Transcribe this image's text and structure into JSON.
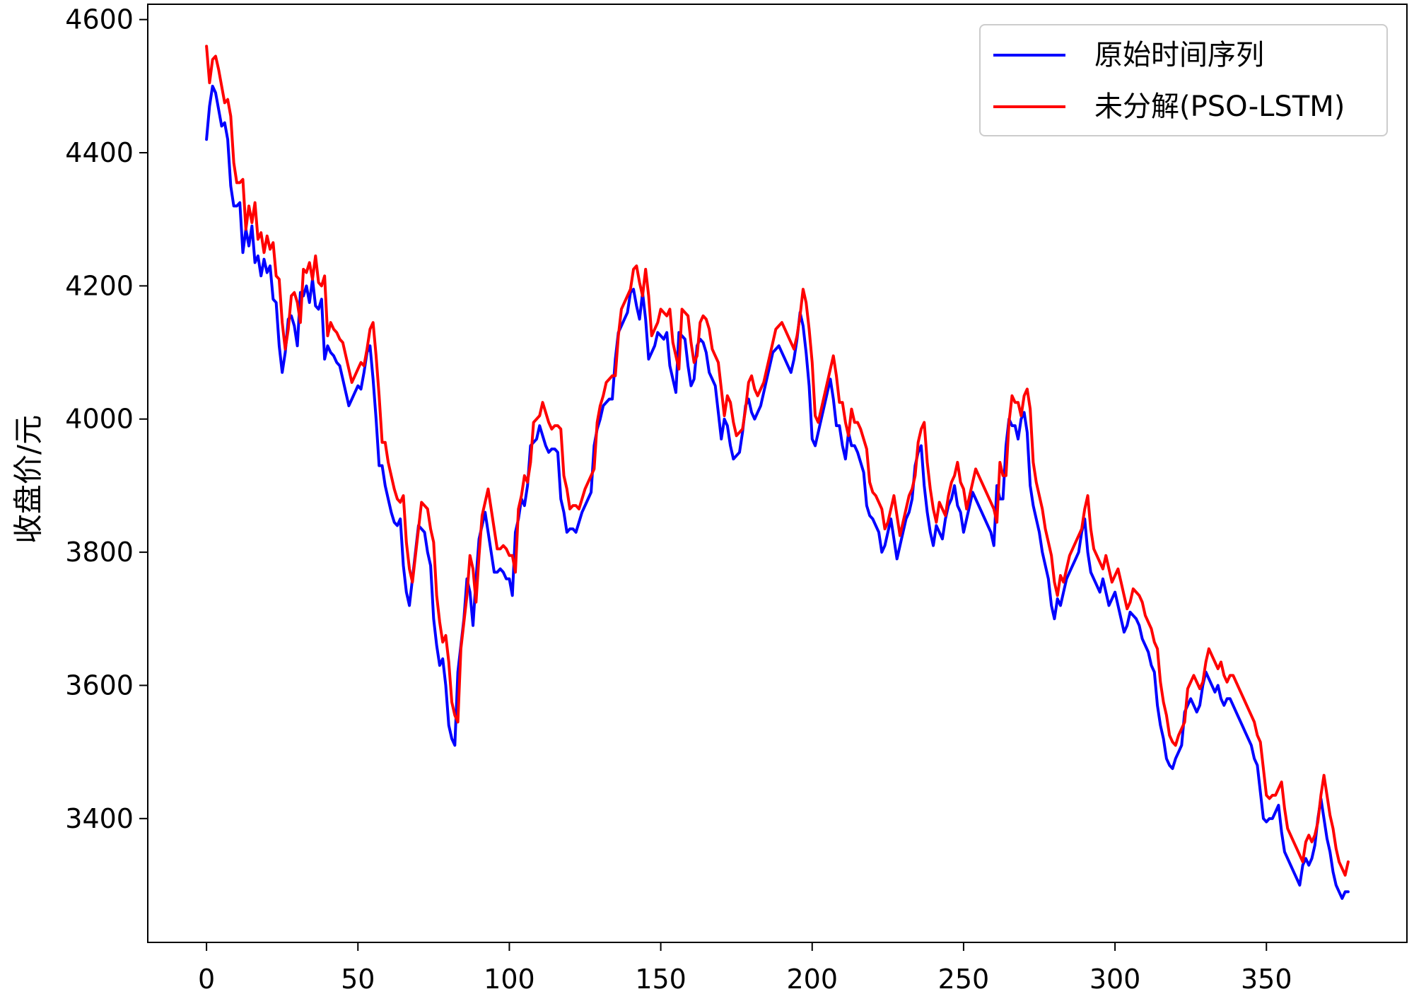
{
  "chart_data": {
    "type": "line",
    "title": "",
    "xlabel": "",
    "ylabel": "收盘价/元",
    "xlim": [
      -19.4,
      396.4
    ],
    "ylim": [
      3214,
      4623
    ],
    "xticks": [
      0,
      50,
      100,
      150,
      200,
      250,
      300,
      350
    ],
    "xtick_labels": [
      "0",
      "50",
      "100",
      "150",
      "200",
      "250",
      "300",
      "350"
    ],
    "yticks": [
      3400,
      3600,
      3800,
      4000,
      4200,
      4400,
      4600
    ],
    "ytick_labels": [
      "3400",
      "3600",
      "3800",
      "4000",
      "4200",
      "4400",
      "4600"
    ],
    "grid": false,
    "legend": "top-right",
    "series": [
      {
        "name": "原始时间序列",
        "color": "#0000ff",
        "values": [
          4420,
          4470,
          4500,
          4490,
          4465,
          4440,
          4445,
          4420,
          4350,
          4320,
          4320,
          4325,
          4250,
          4285,
          4260,
          4290,
          4235,
          4245,
          4215,
          4240,
          4220,
          4230,
          4180,
          4175,
          4110,
          4070,
          4100,
          4150,
          4155,
          4140,
          4110,
          4190,
          4185,
          4200,
          4175,
          4210,
          4170,
          4165,
          4180,
          4090,
          4110,
          4100,
          4095,
          4085,
          4080,
          4060,
          4040,
          4020,
          4030,
          4040,
          4050,
          4045,
          4070,
          4100,
          4110,
          4060,
          4000,
          3930,
          3930,
          3900,
          3880,
          3860,
          3845,
          3840,
          3850,
          3780,
          3740,
          3720,
          3760,
          3800,
          3840,
          3835,
          3830,
          3800,
          3780,
          3700,
          3660,
          3630,
          3640,
          3600,
          3540,
          3520,
          3510,
          3620,
          3660,
          3700,
          3760,
          3740,
          3690,
          3760,
          3820,
          3840,
          3860,
          3830,
          3800,
          3770,
          3770,
          3775,
          3770,
          3760,
          3760,
          3735,
          3830,
          3850,
          3880,
          3870,
          3900,
          3960,
          3965,
          3970,
          3990,
          3975,
          3960,
          3950,
          3955,
          3955,
          3950,
          3880,
          3860,
          3830,
          3835,
          3835,
          3830,
          3845,
          3860,
          3870,
          3880,
          3890,
          3960,
          3985,
          4000,
          4020,
          4025,
          4030,
          4030,
          4090,
          4130,
          4140,
          4150,
          4160,
          4190,
          4195,
          4170,
          4150,
          4190,
          4150,
          4090,
          4100,
          4110,
          4130,
          4125,
          4120,
          4130,
          4080,
          4060,
          4040,
          4130,
          4125,
          4120,
          4080,
          4050,
          4060,
          4110,
          4120,
          4115,
          4100,
          4070,
          4060,
          4050,
          4010,
          3970,
          4000,
          3990,
          3960,
          3940,
          3945,
          3950,
          3980,
          4020,
          4030,
          4010,
          4000,
          4010,
          4020,
          4040,
          4060,
          4080,
          4100,
          4105,
          4110,
          4100,
          4090,
          4080,
          4070,
          4090,
          4120,
          4160,
          4140,
          4100,
          4050,
          3970,
          3960,
          3980,
          4000,
          4020,
          4040,
          4060,
          4030,
          3990,
          3990,
          3960,
          3940,
          3980,
          3960,
          3960,
          3950,
          3935,
          3920,
          3870,
          3855,
          3850,
          3840,
          3830,
          3800,
          3810,
          3830,
          3850,
          3820,
          3790,
          3810,
          3830,
          3850,
          3860,
          3880,
          3930,
          3950,
          3960,
          3900,
          3860,
          3830,
          3810,
          3840,
          3830,
          3820,
          3850,
          3870,
          3880,
          3900,
          3870,
          3860,
          3830,
          3850,
          3870,
          3890,
          3880,
          3870,
          3860,
          3850,
          3840,
          3830,
          3810,
          3900,
          3880,
          3880,
          3960,
          4000,
          3990,
          3990,
          3970,
          4000,
          4010,
          3980,
          3900,
          3870,
          3850,
          3830,
          3800,
          3780,
          3760,
          3720,
          3700,
          3730,
          3720,
          3740,
          3760,
          3770,
          3780,
          3790,
          3800,
          3830,
          3850,
          3800,
          3770,
          3760,
          3750,
          3740,
          3760,
          3740,
          3720,
          3730,
          3740,
          3720,
          3700,
          3680,
          3690,
          3710,
          3705,
          3700,
          3690,
          3670,
          3660,
          3650,
          3630,
          3620,
          3570,
          3540,
          3520,
          3490,
          3480,
          3475,
          3490,
          3500,
          3510,
          3560,
          3570,
          3580,
          3570,
          3560,
          3570,
          3600,
          3620,
          3610,
          3600,
          3590,
          3600,
          3580,
          3570,
          3580,
          3580,
          3570,
          3560,
          3550,
          3540,
          3530,
          3520,
          3510,
          3490,
          3480,
          3440,
          3400,
          3395,
          3400,
          3400,
          3410,
          3420,
          3380,
          3350,
          3340,
          3330,
          3320,
          3310,
          3300,
          3330,
          3340,
          3330,
          3340,
          3360,
          3400,
          3430,
          3400,
          3370,
          3350,
          3320,
          3300,
          3290,
          3280,
          3290,
          3290
        ]
      },
      {
        "name": "未分解(PSO-LSTM)",
        "color": "#ff0000",
        "values": [
          4560,
          4505,
          4540,
          4545,
          4525,
          4500,
          4475,
          4480,
          4455,
          4385,
          4355,
          4355,
          4360,
          4285,
          4320,
          4295,
          4325,
          4270,
          4280,
          4250,
          4275,
          4255,
          4265,
          4215,
          4210,
          4145,
          4105,
          4135,
          4185,
          4190,
          4175,
          4145,
          4225,
          4220,
          4235,
          4210,
          4245,
          4205,
          4200,
          4215,
          4125,
          4145,
          4135,
          4130,
          4120,
          4115,
          4095,
          4075,
          4055,
          4065,
          4075,
          4085,
          4080,
          4105,
          4135,
          4145,
          4095,
          4035,
          3965,
          3965,
          3935,
          3915,
          3895,
          3880,
          3875,
          3885,
          3815,
          3775,
          3755,
          3795,
          3835,
          3875,
          3870,
          3865,
          3835,
          3815,
          3735,
          3695,
          3665,
          3675,
          3635,
          3575,
          3555,
          3545,
          3655,
          3695,
          3735,
          3795,
          3775,
          3725,
          3795,
          3855,
          3875,
          3895,
          3865,
          3835,
          3805,
          3805,
          3810,
          3805,
          3795,
          3795,
          3770,
          3865,
          3885,
          3915,
          3905,
          3935,
          3995,
          4000,
          4005,
          4025,
          4010,
          3995,
          3985,
          3990,
          3990,
          3985,
          3915,
          3895,
          3865,
          3870,
          3870,
          3865,
          3880,
          3895,
          3905,
          3915,
          3925,
          3995,
          4020,
          4035,
          4055,
          4060,
          4065,
          4065,
          4125,
          4165,
          4175,
          4185,
          4195,
          4225,
          4230,
          4205,
          4185,
          4225,
          4185,
          4125,
          4135,
          4145,
          4165,
          4160,
          4155,
          4165,
          4115,
          4095,
          4075,
          4165,
          4160,
          4155,
          4115,
          4085,
          4095,
          4145,
          4155,
          4150,
          4135,
          4105,
          4095,
          4085,
          4045,
          4005,
          4035,
          4025,
          3995,
          3975,
          3980,
          3985,
          4015,
          4055,
          4065,
          4045,
          4035,
          4045,
          4055,
          4075,
          4095,
          4115,
          4135,
          4140,
          4145,
          4135,
          4125,
          4115,
          4105,
          4125,
          4155,
          4195,
          4175,
          4135,
          4085,
          4005,
          3995,
          4015,
          4035,
          4055,
          4075,
          4095,
          4065,
          4025,
          4025,
          3995,
          3975,
          4015,
          3995,
          3995,
          3985,
          3970,
          3955,
          3905,
          3890,
          3885,
          3875,
          3865,
          3835,
          3845,
          3865,
          3885,
          3855,
          3825,
          3845,
          3865,
          3885,
          3895,
          3915,
          3965,
          3985,
          3995,
          3935,
          3895,
          3865,
          3845,
          3875,
          3865,
          3855,
          3885,
          3905,
          3915,
          3935,
          3905,
          3895,
          3865,
          3885,
          3905,
          3925,
          3915,
          3905,
          3895,
          3885,
          3875,
          3865,
          3845,
          3935,
          3915,
          3915,
          3995,
          4035,
          4025,
          4025,
          4005,
          4035,
          4045,
          4015,
          3935,
          3905,
          3885,
          3865,
          3835,
          3815,
          3795,
          3755,
          3735,
          3765,
          3755,
          3775,
          3795,
          3805,
          3815,
          3825,
          3835,
          3865,
          3885,
          3835,
          3805,
          3795,
          3785,
          3775,
          3795,
          3775,
          3755,
          3765,
          3775,
          3755,
          3735,
          3715,
          3725,
          3745,
          3740,
          3735,
          3725,
          3705,
          3695,
          3685,
          3665,
          3655,
          3605,
          3575,
          3555,
          3525,
          3515,
          3510,
          3525,
          3535,
          3545,
          3595,
          3605,
          3615,
          3605,
          3595,
          3605,
          3635,
          3655,
          3645,
          3635,
          3625,
          3635,
          3615,
          3605,
          3615,
          3615,
          3605,
          3595,
          3585,
          3575,
          3565,
          3555,
          3545,
          3525,
          3515,
          3475,
          3435,
          3430,
          3435,
          3435,
          3445,
          3455,
          3415,
          3385,
          3375,
          3365,
          3355,
          3345,
          3335,
          3365,
          3375,
          3365,
          3375,
          3395,
          3435,
          3465,
          3435,
          3405,
          3385,
          3355,
          3335,
          3325,
          3315,
          3335
        ]
      }
    ]
  }
}
